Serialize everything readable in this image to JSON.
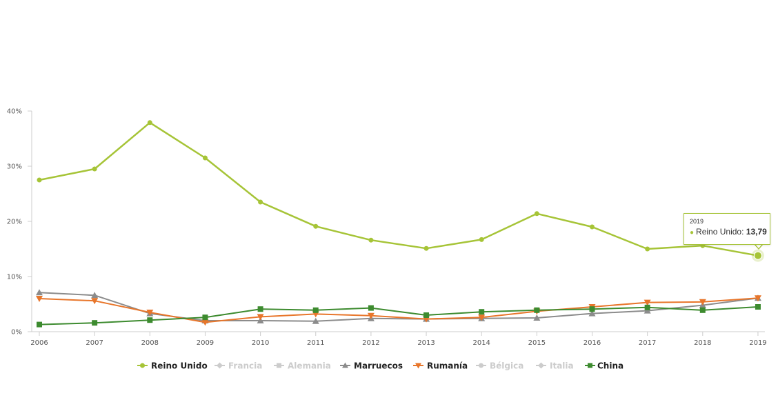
{
  "chart_data": {
    "type": "line",
    "title": "",
    "xlabel": "",
    "ylabel": "",
    "ylim": [
      0,
      40
    ],
    "y_ticks": [
      "0%",
      "10%",
      "20%",
      "30%",
      "40%"
    ],
    "y_tick_values": [
      0,
      10,
      20,
      30,
      40
    ],
    "grid": false,
    "legend_position": "bottom",
    "x": [
      "2006",
      "2007",
      "2008",
      "2009",
      "2010",
      "2011",
      "2012",
      "2013",
      "2014",
      "2015",
      "2016",
      "2017",
      "2018",
      "2019"
    ],
    "series": [
      {
        "name": "Reino Unido",
        "color": "#a6c437",
        "marker": "circle",
        "visible": true,
        "values": [
          27.5,
          29.5,
          37.9,
          31.5,
          23.5,
          19.1,
          16.6,
          15.1,
          16.7,
          21.4,
          19.0,
          15.0,
          15.6,
          13.79
        ]
      },
      {
        "name": "Francia",
        "color": "#cccccc",
        "marker": "diamond",
        "visible": false,
        "values": []
      },
      {
        "name": "Alemania",
        "color": "#cccccc",
        "marker": "square",
        "visible": false,
        "values": []
      },
      {
        "name": "Marruecos",
        "color": "#8c8c8c",
        "marker": "triangle",
        "visible": true,
        "values": [
          7.1,
          6.6,
          3.3,
          2.0,
          2.0,
          1.9,
          2.4,
          2.3,
          2.4,
          2.5,
          3.3,
          3.8,
          4.8,
          6.1
        ]
      },
      {
        "name": "Rumanía",
        "color": "#e8762b",
        "marker": "triangle-down",
        "visible": true,
        "values": [
          6.0,
          5.6,
          3.5,
          1.7,
          2.7,
          3.2,
          2.9,
          2.3,
          2.6,
          3.7,
          4.5,
          5.3,
          5.4,
          6.1
        ]
      },
      {
        "name": "Bélgica",
        "color": "#cccccc",
        "marker": "circle",
        "visible": false,
        "values": []
      },
      {
        "name": "Italia",
        "color": "#cccccc",
        "marker": "diamond",
        "visible": false,
        "values": []
      },
      {
        "name": "China",
        "color": "#3d8b2f",
        "marker": "square",
        "visible": true,
        "values": [
          1.3,
          1.6,
          2.1,
          2.6,
          4.1,
          3.9,
          4.3,
          3.0,
          3.6,
          3.9,
          4.1,
          4.4,
          3.9,
          4.5
        ]
      }
    ],
    "annotations": [
      {
        "type": "tooltip",
        "x": "2019",
        "series": "Reino Unido",
        "value": "13,79"
      }
    ]
  },
  "tooltip": {
    "year": "2019",
    "series_name": "Reino Unido:",
    "value": "13,79"
  },
  "legend": [
    {
      "label": "Reino Unido",
      "color": "#a6c437",
      "active": true
    },
    {
      "label": "Francia",
      "color": "#cccccc",
      "active": false
    },
    {
      "label": "Alemania",
      "color": "#cccccc",
      "active": false
    },
    {
      "label": "Marruecos",
      "color": "#8c8c8c",
      "active": true
    },
    {
      "label": "Rumanía",
      "color": "#e8762b",
      "active": true
    },
    {
      "label": "Bélgica",
      "color": "#cccccc",
      "active": false
    },
    {
      "label": "Italia",
      "color": "#cccccc",
      "active": false
    },
    {
      "label": "China",
      "color": "#3d8b2f",
      "active": true
    }
  ],
  "colors": {
    "axis": "#cccccc",
    "tick_text": "#555555",
    "legend_active_text": "#222222",
    "legend_inactive_text": "#cccccc"
  }
}
